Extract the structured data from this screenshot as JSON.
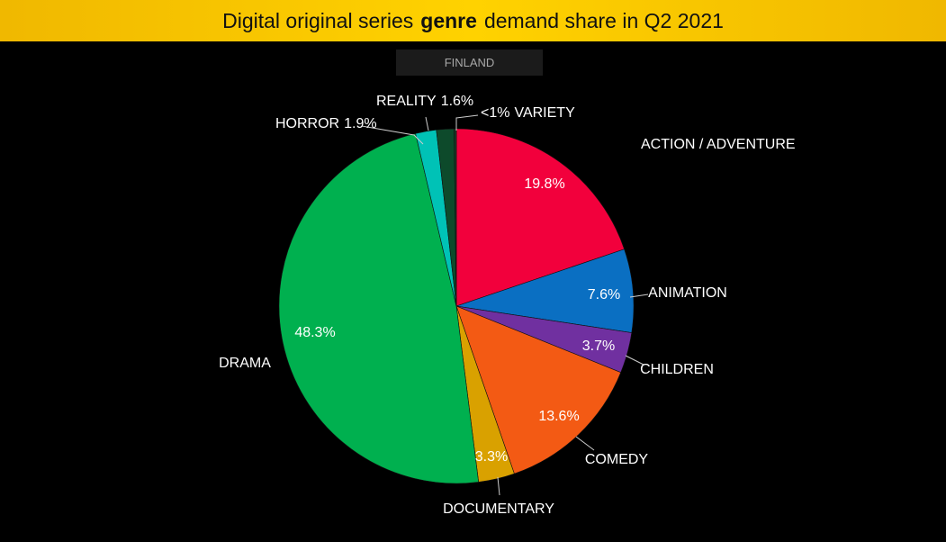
{
  "chart_data": {
    "type": "pie",
    "title": [
      "Digital original series",
      "genre",
      "demand share in Q2 2021"
    ],
    "subtitle": "FINLAND",
    "categories": [
      "ACTION / ADVENTURE",
      "ANIMATION",
      "CHILDREN",
      "COMEDY",
      "DOCUMENTARY",
      "DRAMA",
      "HORROR",
      "REALITY",
      "VARIETY"
    ],
    "values": [
      19.8,
      7.6,
      3.7,
      13.6,
      3.3,
      48.3,
      1.9,
      1.6,
      0.2
    ],
    "value_labels": [
      "19.8%",
      "7.6%",
      "3.7%",
      "13.6%",
      "3.3%",
      "48.3%",
      "1.9%",
      "1.6%",
      "<1%"
    ],
    "colors": [
      "#f2003c",
      "#0a6fc2",
      "#7030a0",
      "#f35a14",
      "#d9a100",
      "#00b04f",
      "#00c2b6",
      "#0d4a2b",
      "#1c3a26"
    ]
  }
}
